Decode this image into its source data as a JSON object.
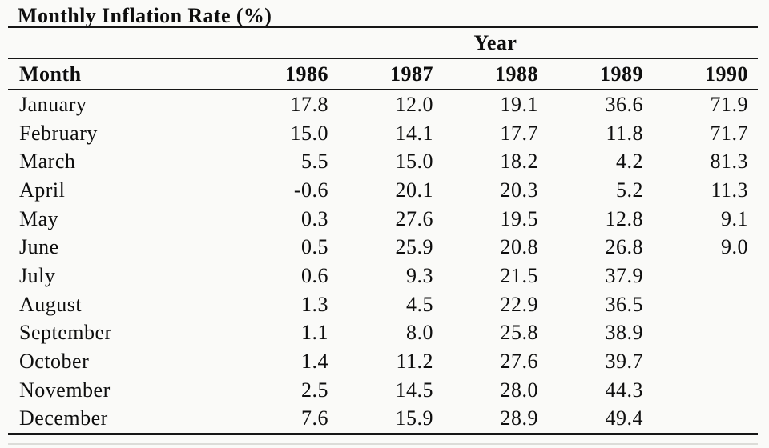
{
  "page": {
    "background": "#fafaf8",
    "text_color": "#0e0e0e",
    "rule_color": "#161616"
  },
  "table": {
    "title": "Monthly Inflation Rate (%)",
    "span_header": "Year",
    "columns": [
      "Month",
      "1986",
      "1987",
      "1988",
      "1989",
      "1990"
    ],
    "rows": [
      [
        "January",
        "17.8",
        "12.0",
        "19.1",
        "36.6",
        "71.9"
      ],
      [
        "February",
        "15.0",
        "14.1",
        "17.7",
        "11.8",
        "71.7"
      ],
      [
        "March",
        "5.5",
        "15.0",
        "18.2",
        "4.2",
        "81.3"
      ],
      [
        "April",
        "-0.6",
        "20.1",
        "20.3",
        "5.2",
        "11.3"
      ],
      [
        "May",
        "0.3",
        "27.6",
        "19.5",
        "12.8",
        "9.1"
      ],
      [
        "June",
        "0.5",
        "25.9",
        "20.8",
        "26.8",
        "9.0"
      ],
      [
        "July",
        "0.6",
        "9.3",
        "21.5",
        "37.9",
        ""
      ],
      [
        "August",
        "1.3",
        "4.5",
        "22.9",
        "36.5",
        ""
      ],
      [
        "September",
        "1.1",
        "8.0",
        "25.8",
        "38.9",
        ""
      ],
      [
        "October",
        "1.4",
        "11.2",
        "27.6",
        "39.7",
        ""
      ],
      [
        "November",
        "2.5",
        "14.5",
        "28.0",
        "44.3",
        ""
      ],
      [
        "December",
        "7.6",
        "15.9",
        "28.9",
        "49.4",
        ""
      ]
    ]
  },
  "chart_data": {
    "type": "table",
    "title": "Monthly Inflation Rate (%)",
    "group_header": "Year",
    "row_label": "Month",
    "categories": [
      "January",
      "February",
      "March",
      "April",
      "May",
      "June",
      "July",
      "August",
      "September",
      "October",
      "November",
      "December"
    ],
    "series": [
      {
        "name": "1986",
        "values": [
          17.8,
          15.0,
          5.5,
          -0.6,
          0.3,
          0.5,
          0.6,
          1.3,
          1.1,
          1.4,
          2.5,
          7.6
        ]
      },
      {
        "name": "1987",
        "values": [
          12.0,
          14.1,
          15.0,
          20.1,
          27.6,
          25.9,
          9.3,
          4.5,
          8.0,
          11.2,
          14.5,
          15.9
        ]
      },
      {
        "name": "1988",
        "values": [
          19.1,
          17.7,
          18.2,
          20.3,
          19.5,
          20.8,
          21.5,
          22.9,
          25.8,
          27.6,
          28.0,
          28.9
        ]
      },
      {
        "name": "1989",
        "values": [
          36.6,
          11.8,
          4.2,
          5.2,
          12.8,
          26.8,
          37.9,
          36.5,
          38.9,
          39.7,
          44.3,
          49.4
        ]
      },
      {
        "name": "1990",
        "values": [
          71.9,
          71.7,
          81.3,
          11.3,
          9.1,
          9.0,
          null,
          null,
          null,
          null,
          null,
          null
        ]
      }
    ]
  }
}
